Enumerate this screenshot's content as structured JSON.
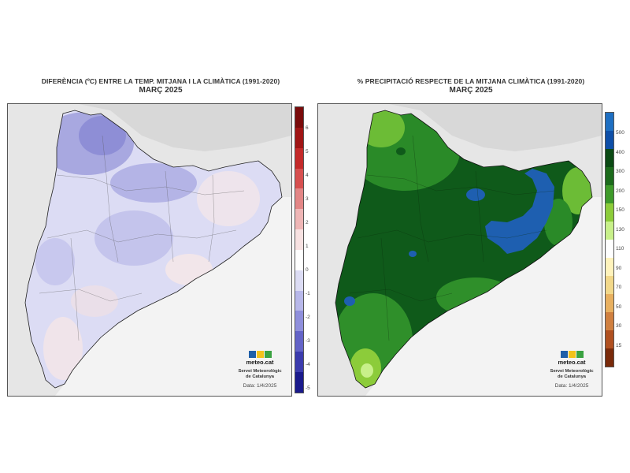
{
  "left_map": {
    "title_line1": "DIFERÈNCIA (ºC) ENTRE LA TEMP. MITJANA I LA CLIMÀTICA (1991-2020)",
    "title_line2": "MARÇ 2025",
    "legend_ticks": [
      "6",
      "5",
      "4",
      "3",
      "2",
      "1",
      "0",
      "-1",
      "-2",
      "-3",
      "-4",
      "-5"
    ],
    "legend_colors": [
      "#7a0b0b",
      "#a01515",
      "#c42a2a",
      "#d75050",
      "#e38686",
      "#efb6b6",
      "#f8e2e2",
      "#ffffff",
      "#dcdcf4",
      "#b8b8ea",
      "#8f8fdc",
      "#6464c8",
      "#3c3cae",
      "#1a1a8c"
    ],
    "brand": "meteo.cat",
    "service_line1": "Servei Meteorològic",
    "service_line2": "de Catalunya",
    "date": "Data: 1/4/2025"
  },
  "right_map": {
    "title_line1": "% PRECIPITACIÓ RESPECTE DE LA MITJANA CLIMÀTICA (1991-2020)",
    "title_line2": "MARÇ 2025",
    "legend_ticks": [
      "500",
      "400",
      "300",
      "200",
      "150",
      "130",
      "110",
      "90",
      "70",
      "50",
      "30",
      "15"
    ],
    "legend_colors": [
      "#1e6fc2",
      "#0e4fa8",
      "#0b4a14",
      "#1c6b1c",
      "#3e9a2a",
      "#8ccc3a",
      "#c8f08a",
      "#ffffff",
      "#fff3bc",
      "#f2d88a",
      "#e8b060",
      "#d08040",
      "#b05020",
      "#7a2a0a"
    ],
    "brand": "meteo.cat",
    "service_line1": "Servei Meteorològic",
    "service_line2": "de Catalunya",
    "date": "Data: 1/4/2025"
  }
}
